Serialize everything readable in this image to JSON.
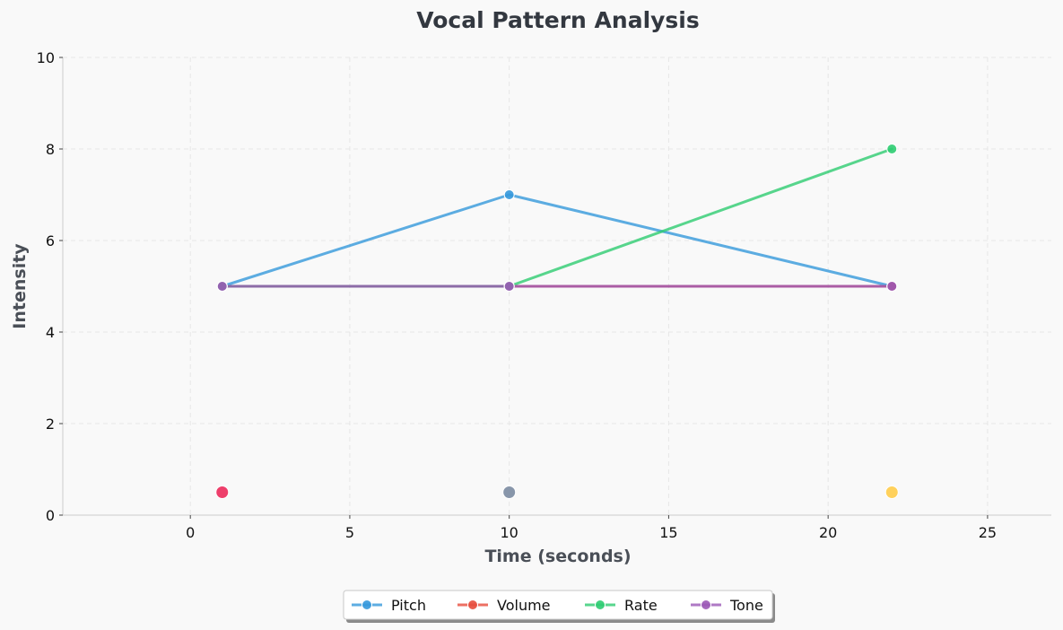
{
  "chart_data": {
    "type": "line",
    "title": "Vocal Pattern Analysis",
    "xlabel": "Time (seconds)",
    "ylabel": "Intensity",
    "xlim": [
      -4,
      27
    ],
    "ylim": [
      0,
      10
    ],
    "xticks": [
      0,
      5,
      10,
      15,
      20,
      25
    ],
    "yticks": [
      0,
      2,
      4,
      6,
      8,
      10
    ],
    "grid": true,
    "legend_placement": "bottom-center",
    "series": [
      {
        "name": "Pitch",
        "color": "#3498db",
        "x": [
          1,
          10,
          22
        ],
        "y": [
          5,
          7,
          5
        ]
      },
      {
        "name": "Volume",
        "color": "#e74c3c",
        "x": [
          1,
          10,
          22
        ],
        "y": [
          5,
          5,
          5
        ]
      },
      {
        "name": "Rate",
        "color": "#2ecc71",
        "x": [
          1,
          10,
          22
        ],
        "y": [
          5,
          5,
          8
        ]
      },
      {
        "name": "Tone",
        "color": "#9b59b6",
        "x": [
          1,
          10,
          22
        ],
        "y": [
          5,
          5,
          5
        ]
      }
    ],
    "markers": [
      {
        "x": 1,
        "y": 0.5,
        "color": "#ee3f6b"
      },
      {
        "x": 10,
        "y": 0.5,
        "color": "#8896aa"
      },
      {
        "x": 22,
        "y": 0.5,
        "color": "#ffd15c"
      }
    ]
  }
}
